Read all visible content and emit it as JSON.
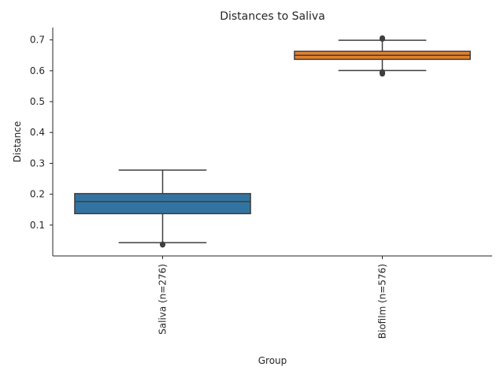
{
  "chart_data": {
    "type": "box",
    "title": "Distances to Saliva",
    "xlabel": "Group",
    "ylabel": "Distance",
    "ylim": [
      0.0,
      0.74
    ],
    "yticks": [
      0.1,
      0.2,
      0.3,
      0.4,
      0.5,
      0.6,
      0.7
    ],
    "grid": false,
    "legend": "none",
    "categories": [
      "Saliva (n=276)",
      "Biofilm (n=576)"
    ],
    "series": [
      {
        "category": "Saliva (n=276)",
        "color": "#3274a1",
        "whisker_low": 0.043,
        "q1": 0.137,
        "median": 0.176,
        "q3": 0.202,
        "whisker_high": 0.278,
        "outliers": [
          0.036,
          0.038
        ]
      },
      {
        "category": "Biofilm (n=576)",
        "color": "#e1812c",
        "whisker_low": 0.601,
        "q1": 0.637,
        "median": 0.65,
        "q3": 0.663,
        "whisker_high": 0.699,
        "outliers": [
          0.59,
          0.593,
          0.596,
          0.703,
          0.706
        ]
      }
    ]
  }
}
